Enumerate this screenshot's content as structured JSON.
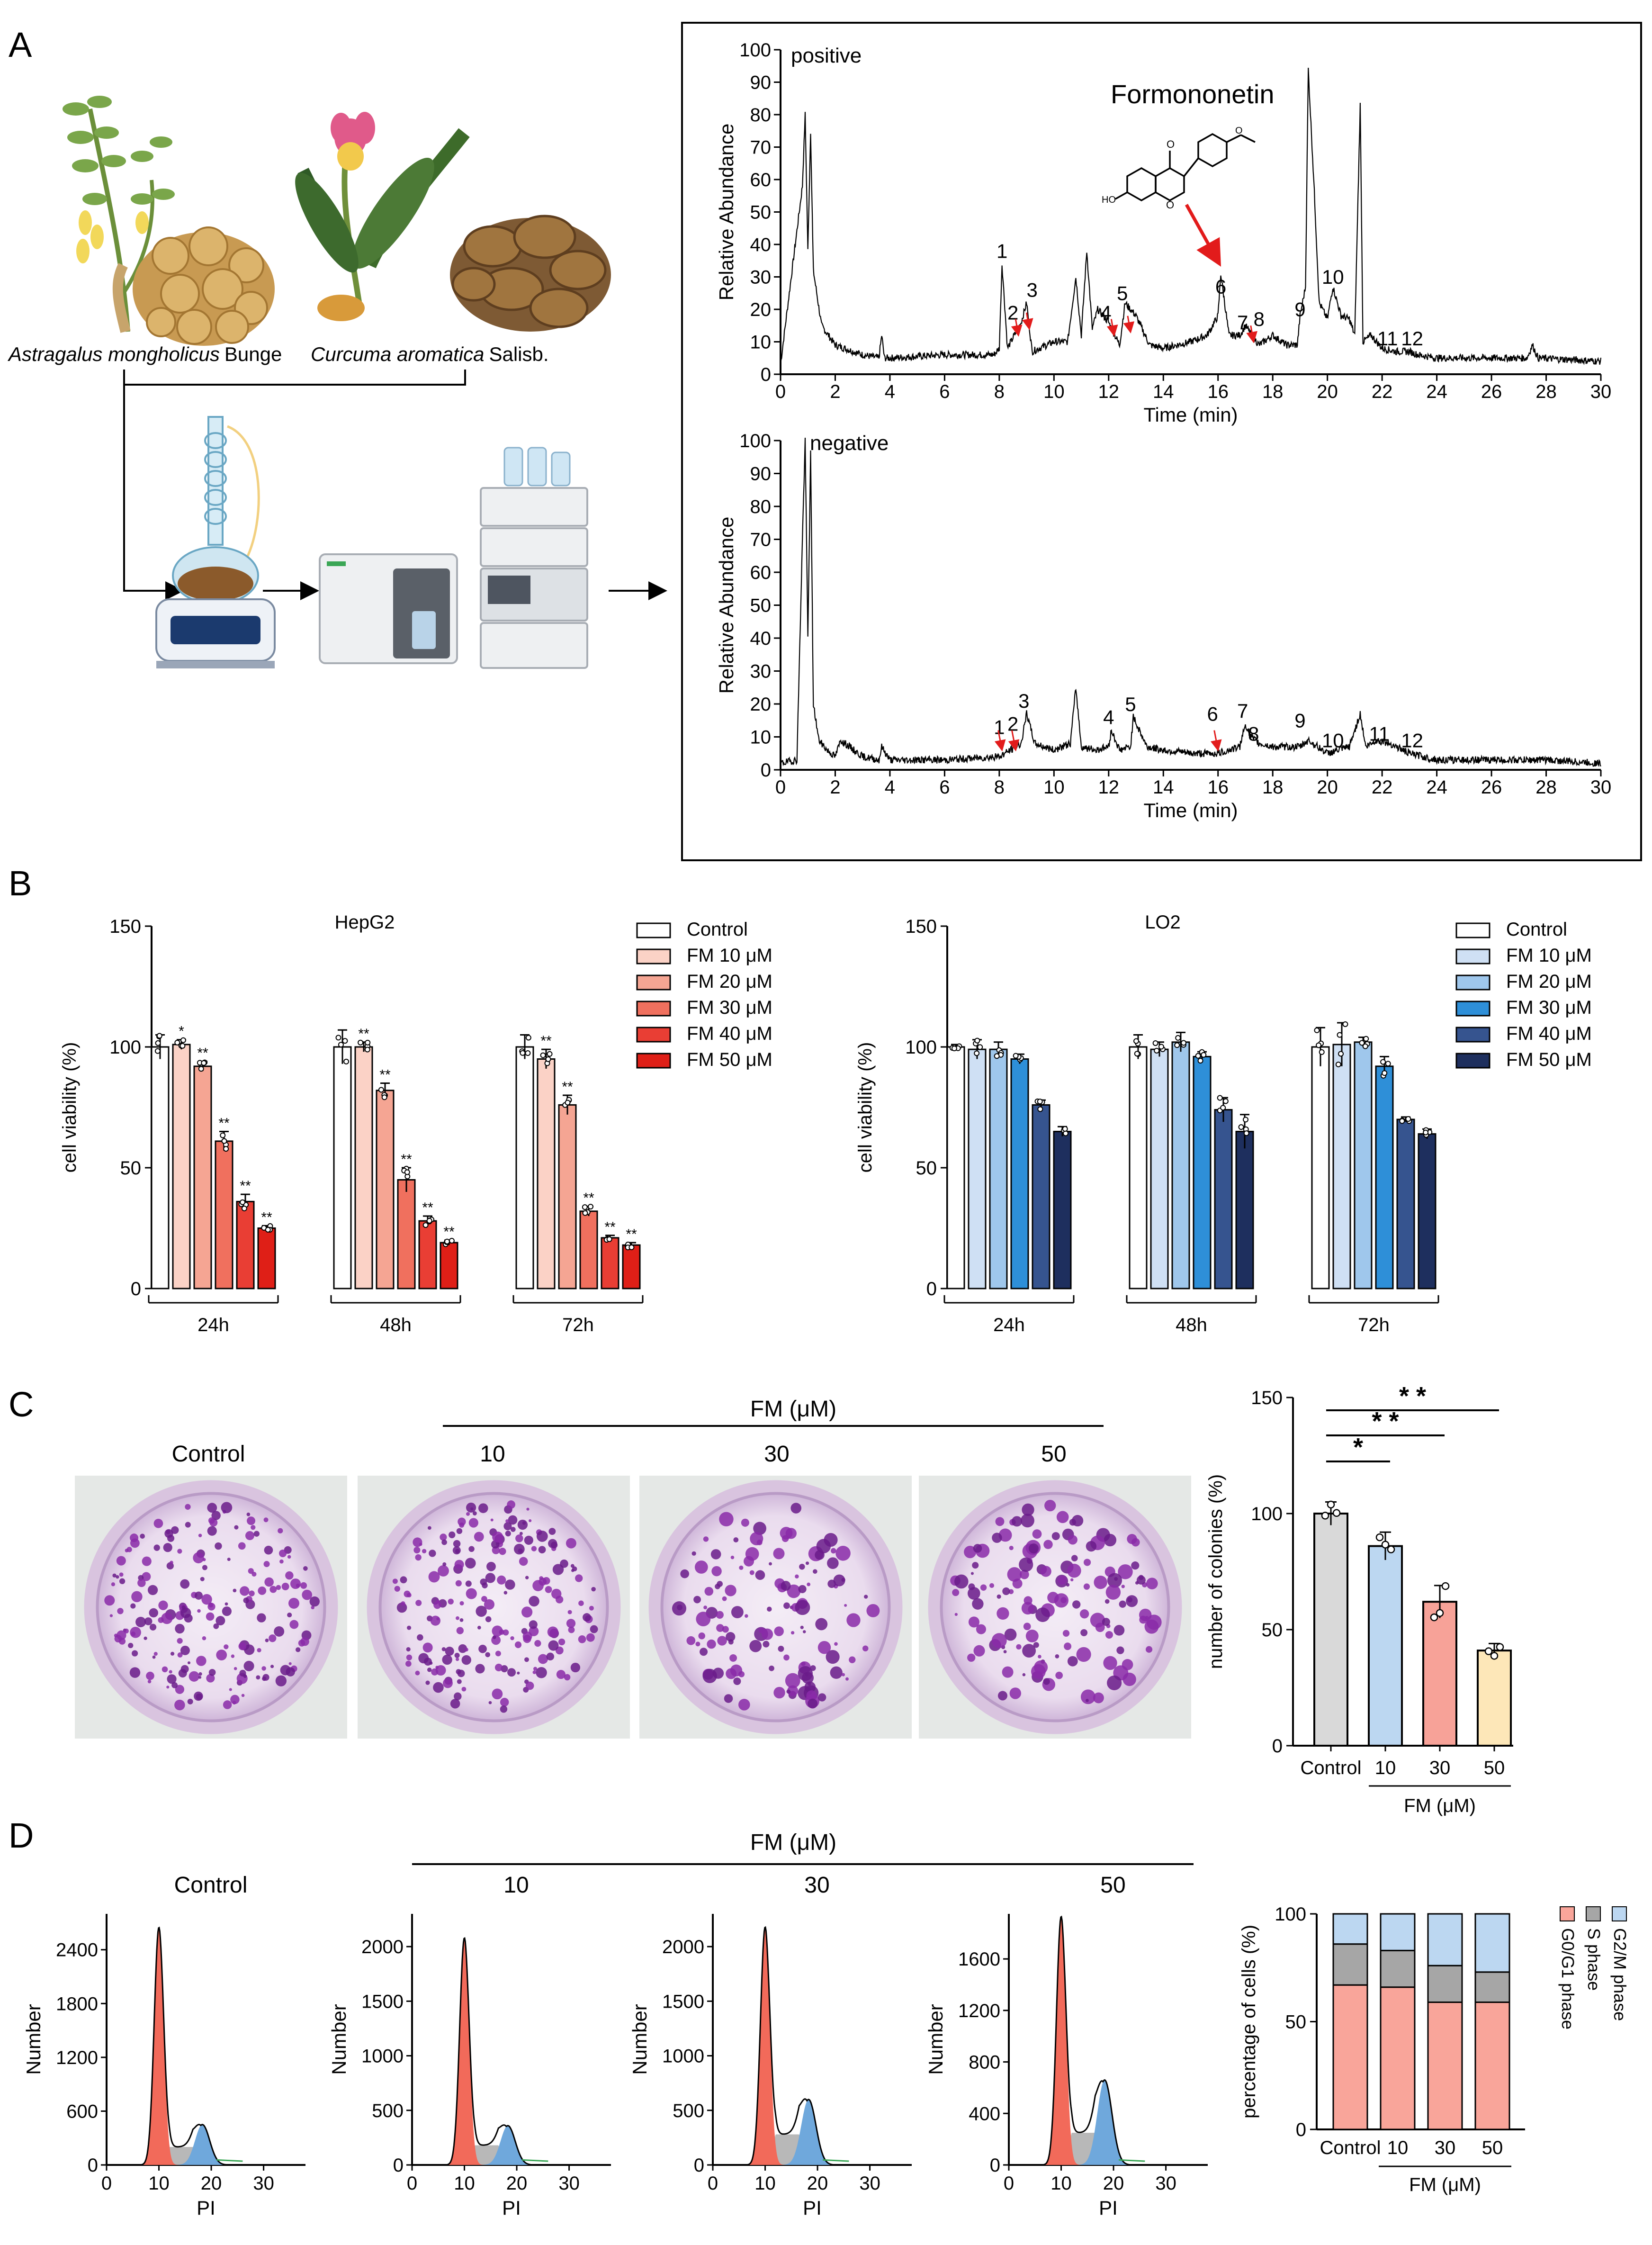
{
  "panel_letters": [
    "A",
    "B",
    "C",
    "D"
  ],
  "panelA": {
    "plant1_label": "Astragalus mongholicus Bunge",
    "plant1_genus": "Astragalus mongholicus",
    "plant1_author": "Bunge",
    "plant2_label": "Curcuma aromatica Salisb.",
    "plant2_genus": "Curcuma aromatica",
    "plant2_author": "Salisb.",
    "compound_label": "Formononetin",
    "positive_label": "positive",
    "negative_label": "negative",
    "ylabel": "Relative Abundance",
    "xlabel": "Time (min)"
  },
  "panelC": {
    "fm_header": "FM (μM)",
    "plate_labels": [
      "Control",
      "10",
      "30",
      "50"
    ],
    "sig_marks": [
      "*",
      "* *",
      "* *"
    ]
  },
  "panelD": {
    "fm_header": "FM (μM)",
    "hist_titles": [
      "Control",
      "10",
      "30",
      "50"
    ],
    "ylabel": "Number",
    "xlabel": "PI"
  },
  "chart_data": [
    {
      "type": "line",
      "panel": "A-positive",
      "text_label": "positive",
      "xlabel": "Time (min)",
      "ylabel": "Relative Abundance",
      "xlim": [
        0,
        30
      ],
      "ylim": [
        0,
        100
      ],
      "xticks": [
        0,
        2,
        4,
        6,
        8,
        10,
        12,
        14,
        16,
        18,
        20,
        22,
        24,
        26,
        28,
        30
      ],
      "yticks": [
        0,
        10,
        20,
        30,
        40,
        50,
        60,
        70,
        80,
        90,
        100
      ],
      "x": [
        0,
        0.8,
        0.9,
        1.0,
        1.1,
        1.2,
        1.5,
        2,
        3,
        3.6,
        3.7,
        3.8,
        4,
        6,
        7.8,
        8.0,
        8.1,
        8.3,
        8.8,
        9.0,
        9.2,
        10,
        10.5,
        10.8,
        11.0,
        11.2,
        11.4,
        11.6,
        12,
        12.4,
        12.6,
        13,
        13.5,
        14,
        15,
        15.6,
        16.0,
        16.1,
        16.4,
        16.8,
        17,
        17.5,
        18,
        18.5,
        18.9,
        19.0,
        19.2,
        19.3,
        19.5,
        19.7,
        20.0,
        20.2,
        20.5,
        20.8,
        21.0,
        21.2,
        21.3,
        21.6,
        22,
        22.5,
        23,
        23.3,
        24,
        26,
        27.3,
        27.5,
        27.7,
        30
      ],
      "y": [
        3,
        58,
        80,
        38,
        75,
        32,
        15,
        9,
        6,
        5,
        12,
        5,
        5,
        6,
        6,
        8,
        34,
        8,
        16,
        22,
        7,
        10,
        10,
        30,
        12,
        38,
        14,
        20,
        16,
        9,
        22,
        18,
        9,
        8,
        10,
        12,
        18,
        31,
        12,
        12,
        15,
        9,
        12,
        9,
        9,
        18,
        27,
        94,
        60,
        22,
        17,
        27,
        18,
        17,
        12,
        83,
        10,
        12,
        8,
        7,
        7,
        6,
        5,
        5,
        5,
        9,
        5,
        4
      ],
      "peak_labels": [
        {
          "label": "1",
          "x": 8.1,
          "y": 35
        },
        {
          "label": "2",
          "x": 8.5,
          "y": 16
        },
        {
          "label": "3",
          "x": 9.2,
          "y": 23
        },
        {
          "label": "4",
          "x": 11.9,
          "y": 16
        },
        {
          "label": "5",
          "x": 12.5,
          "y": 22
        },
        {
          "label": "6",
          "x": 16.1,
          "y": 24
        },
        {
          "label": "7",
          "x": 16.9,
          "y": 13
        },
        {
          "label": "8",
          "x": 17.5,
          "y": 14
        },
        {
          "label": "9",
          "x": 19.0,
          "y": 17
        },
        {
          "label": "10",
          "x": 20.2,
          "y": 27
        },
        {
          "label": "11",
          "x": 22.2,
          "y": 8
        },
        {
          "label": "12",
          "x": 23.1,
          "y": 8
        }
      ],
      "compound_annotation": "Formononetin",
      "compound_peak": "6"
    },
    {
      "type": "line",
      "panel": "A-negative",
      "text_label": "negative",
      "xlabel": "Time (min)",
      "ylabel": "Relative Abundance",
      "xlim": [
        0,
        30
      ],
      "ylim": [
        0,
        100
      ],
      "xticks": [
        0,
        2,
        4,
        6,
        8,
        10,
        12,
        14,
        16,
        18,
        20,
        22,
        24,
        26,
        28,
        30
      ],
      "yticks": [
        0,
        10,
        20,
        30,
        40,
        50,
        60,
        70,
        80,
        90,
        100
      ],
      "x": [
        0,
        0.6,
        0.8,
        0.9,
        1.0,
        1.1,
        1.2,
        1.4,
        1.7,
        2,
        2.2,
        3,
        3.6,
        3.7,
        4,
        5,
        6,
        8,
        8.4,
        8.8,
        9.0,
        9.3,
        10,
        10.6,
        10.8,
        11,
        11.5,
        12,
        12.1,
        12.4,
        12.8,
        12.9,
        13.4,
        14,
        15,
        16,
        16.8,
        17.0,
        17.2,
        17.5,
        18,
        19,
        19.3,
        20,
        20.8,
        21.2,
        21.4,
        21.8,
        22.3,
        23,
        24,
        26,
        28,
        30
      ],
      "y": [
        2,
        3,
        70,
        100,
        40,
        96,
        20,
        9,
        6,
        4,
        9,
        4,
        3,
        7,
        3,
        3,
        3,
        4,
        6,
        8,
        17,
        8,
        6,
        8,
        25,
        7,
        6,
        7,
        12,
        6,
        7,
        16,
        7,
        6,
        5,
        5,
        7,
        14,
        10,
        8,
        7,
        7,
        9,
        5,
        7,
        17,
        7,
        9,
        8,
        5,
        3,
        3,
        3,
        2
      ],
      "peak_labels": [
        {
          "label": "1",
          "x": 8.0,
          "y": 10
        },
        {
          "label": "2",
          "x": 8.5,
          "y": 11
        },
        {
          "label": "3",
          "x": 8.9,
          "y": 18
        },
        {
          "label": "4",
          "x": 12.0,
          "y": 13
        },
        {
          "label": "5",
          "x": 12.8,
          "y": 17
        },
        {
          "label": "6",
          "x": 15.8,
          "y": 14
        },
        {
          "label": "7",
          "x": 16.9,
          "y": 15
        },
        {
          "label": "8",
          "x": 17.3,
          "y": 8
        },
        {
          "label": "9",
          "x": 19.0,
          "y": 12
        },
        {
          "label": "10",
          "x": 20.2,
          "y": 6
        },
        {
          "label": "11",
          "x": 21.9,
          "y": 8
        },
        {
          "label": "12",
          "x": 23.1,
          "y": 6
        }
      ]
    },
    {
      "type": "bar",
      "panel": "B-HepG2",
      "title": "HepG2",
      "ylabel": "cell viability (%)",
      "ylim": [
        0,
        150
      ],
      "yticks": [
        0,
        50,
        100,
        150
      ],
      "groups": [
        "24h",
        "48h",
        "72h"
      ],
      "legend": [
        "Control",
        "FM 10 μM",
        "FM 20 μM",
        "FM 30 μM",
        "FM 40 μM",
        "FM 50 μM"
      ],
      "colors": [
        "#ffffff",
        "#fbd2c6",
        "#f5a593",
        "#f0705e",
        "#e93e34",
        "#df1f17"
      ],
      "values": [
        [
          100,
          101,
          92,
          61,
          36,
          25
        ],
        [
          100,
          100,
          82,
          45,
          28,
          19
        ],
        [
          100,
          95,
          76,
          32,
          21,
          18
        ]
      ],
      "errors": [
        [
          5,
          2,
          2,
          4,
          3,
          1
        ],
        [
          7,
          2,
          3,
          5,
          2,
          1
        ],
        [
          5,
          4,
          4,
          2,
          1,
          1
        ]
      ],
      "sig": [
        [
          "",
          "*",
          "**",
          "**",
          "**",
          "**"
        ],
        [
          "",
          "**",
          "**",
          "**",
          "**",
          "**"
        ],
        [
          "",
          "**",
          "**",
          "**",
          "**",
          "**"
        ]
      ]
    },
    {
      "type": "bar",
      "panel": "B-LO2",
      "title": "LO2",
      "ylabel": "cell viability (%)",
      "ylim": [
        0,
        150
      ],
      "yticks": [
        0,
        50,
        100,
        150
      ],
      "groups": [
        "24h",
        "48h",
        "72h"
      ],
      "legend": [
        "Control",
        "FM 10 μM",
        "FM 20 μM",
        "FM 30 μM",
        "FM 40 μM",
        "FM 50 μM"
      ],
      "colors": [
        "#ffffff",
        "#cfe0f4",
        "#9fc7ec",
        "#2e8fd8",
        "#36548f",
        "#1e2f5e"
      ],
      "values": [
        [
          100,
          99,
          99,
          95,
          76,
          65
        ],
        [
          100,
          99,
          102,
          96,
          74,
          65
        ],
        [
          100,
          101,
          102,
          92,
          70,
          64
        ]
      ],
      "errors": [
        [
          1,
          4,
          3,
          2,
          2,
          2
        ],
        [
          5,
          3,
          4,
          2,
          5,
          7
        ],
        [
          8,
          9,
          2,
          4,
          1,
          2
        ]
      ],
      "sig": [
        [
          "",
          "",
          "",
          "",
          "",
          ""
        ],
        [
          "",
          "",
          "",
          "",
          "",
          ""
        ],
        [
          "",
          "",
          "",
          "",
          "",
          ""
        ]
      ]
    },
    {
      "type": "bar",
      "panel": "C",
      "ylabel": "number of colonies (%)",
      "xlabel": "FM (μM)",
      "ylim": [
        0,
        150
      ],
      "yticks": [
        0,
        50,
        100,
        150
      ],
      "categories": [
        "Control",
        "10",
        "30",
        "50"
      ],
      "values": [
        100,
        86,
        62,
        41
      ],
      "errors": [
        5,
        6,
        7,
        3
      ],
      "colors": [
        "#d9d9d9",
        "#bcd7f1",
        "#f7a298",
        "#fde7b8"
      ],
      "sig": [
        {
          "from": 0,
          "to": 1,
          "label": "*"
        },
        {
          "from": 0,
          "to": 2,
          "label": "* *"
        },
        {
          "from": 0,
          "to": 3,
          "label": "* *"
        }
      ]
    },
    {
      "type": "area",
      "panel": "D-histograms",
      "xlabel": "PI",
      "ylabel": "Number",
      "xlim": [
        0,
        38
      ],
      "xticks": [
        0,
        10,
        20,
        30
      ],
      "histograms": [
        {
          "title": "Control",
          "ylim": [
            0,
            2800
          ],
          "yticks": [
            0,
            600,
            1200,
            1800,
            2400
          ],
          "g1_peak": 2650,
          "g2_peak": 450,
          "s_level": 200
        },
        {
          "title": "10",
          "ylim": [
            0,
            2300
          ],
          "yticks": [
            0,
            500,
            1000,
            1500,
            2000
          ],
          "g1_peak": 2080,
          "g2_peak": 360,
          "s_level": 180
        },
        {
          "title": "30",
          "ylim": [
            0,
            2300
          ],
          "yticks": [
            0,
            500,
            1000,
            1500,
            2000
          ],
          "g1_peak": 2180,
          "g2_peak": 600,
          "s_level": 280
        },
        {
          "title": "50",
          "ylim": [
            0,
            1950
          ],
          "yticks": [
            0,
            400,
            800,
            1200,
            1600
          ],
          "g1_peak": 1930,
          "g2_peak": 660,
          "s_level": 250
        }
      ],
      "phase_colors": {
        "G0/G1": "#f26a5a",
        "S": "#b8b8b8",
        "G2/M": "#6fa8dc"
      }
    },
    {
      "type": "bar",
      "panel": "D-stacked",
      "ylabel": "percentage of cells (%)",
      "xlabel": "FM (μM)",
      "ylim": [
        0,
        100
      ],
      "yticks": [
        0,
        50,
        100
      ],
      "categories": [
        "Control",
        "10",
        "30",
        "50"
      ],
      "series": [
        {
          "name": "G0/G1 phase",
          "values": [
            67,
            66,
            59,
            59
          ],
          "color": "#f9a59a"
        },
        {
          "name": "S phase",
          "values": [
            19,
            17,
            17,
            14
          ],
          "color": "#a6a6a6"
        },
        {
          "name": "G2/M phase",
          "values": [
            14,
            17,
            24,
            27
          ],
          "color": "#bcd7f1"
        }
      ]
    }
  ]
}
